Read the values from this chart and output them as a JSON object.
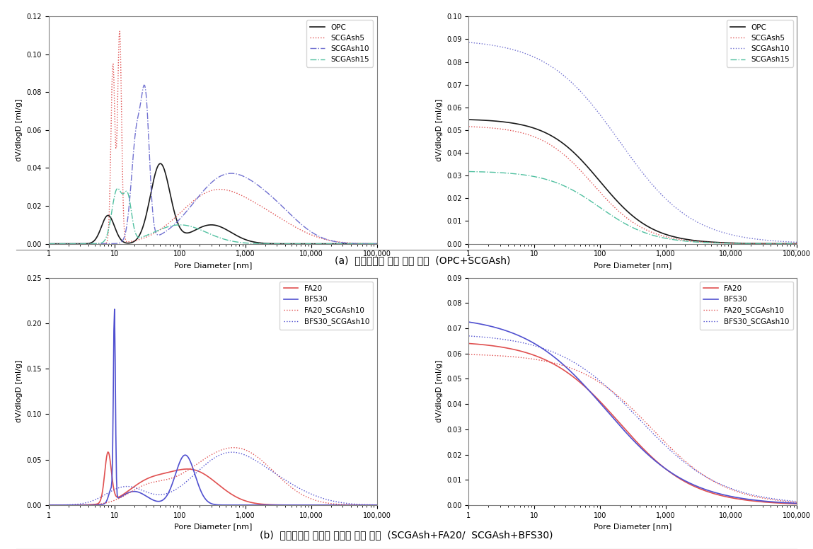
{
  "title_a": "(a)  커피찌꺼기 애시 혼입 샘플  (OPC+SCGAsh)",
  "title_b": "(b)  커피찌꺼기 애시와 혼화재 혼입 샘플  (SCGAsh+FA20/  SCGAsh+BFS30)",
  "subplot_a_left": {
    "ylabel": "dV/dlogD [ml/g]",
    "xlabel": "Pore Diameter [nm]",
    "ylim": [
      0,
      0.12
    ],
    "yticks": [
      0,
      0.02,
      0.04,
      0.06,
      0.08,
      0.1,
      0.12
    ],
    "xlim": [
      1,
      100000
    ]
  },
  "subplot_a_right": {
    "ylabel": "dV/dlogD [ml/g]",
    "xlabel": "Pore Diameter [nm]",
    "ylim": [
      0,
      0.1
    ],
    "yticks": [
      0,
      0.01,
      0.02,
      0.03,
      0.04,
      0.05,
      0.06,
      0.07,
      0.08,
      0.09,
      0.1
    ],
    "xlim": [
      1,
      100000
    ]
  },
  "subplot_b_left": {
    "ylabel": "dV/dlogD [ml/g]",
    "xlabel": "Pore Diameter [nm]",
    "ylim": [
      0,
      0.25
    ],
    "yticks": [
      0,
      0.05,
      0.1,
      0.15,
      0.2,
      0.25
    ],
    "xlim": [
      1,
      100000
    ]
  },
  "subplot_b_right": {
    "ylabel": "dV/dlogD [ml/g]",
    "xlabel": "Pore Diameter [nm]",
    "ylim": [
      0,
      0.09
    ],
    "yticks": [
      0,
      0.01,
      0.02,
      0.03,
      0.04,
      0.05,
      0.06,
      0.07,
      0.08,
      0.09
    ],
    "xlim": [
      1,
      100000
    ]
  },
  "colors": {
    "OPC": "#1a1a1a",
    "SCGAsh5": "#e05050",
    "SCGAsh10": "#7070d0",
    "SCGAsh15": "#50c0a0",
    "FA20": "#e05050",
    "BFS30": "#5050d0",
    "FA20_SCGAsh10": "#e05050",
    "BFS30_SCGAsh10": "#5050d0"
  }
}
